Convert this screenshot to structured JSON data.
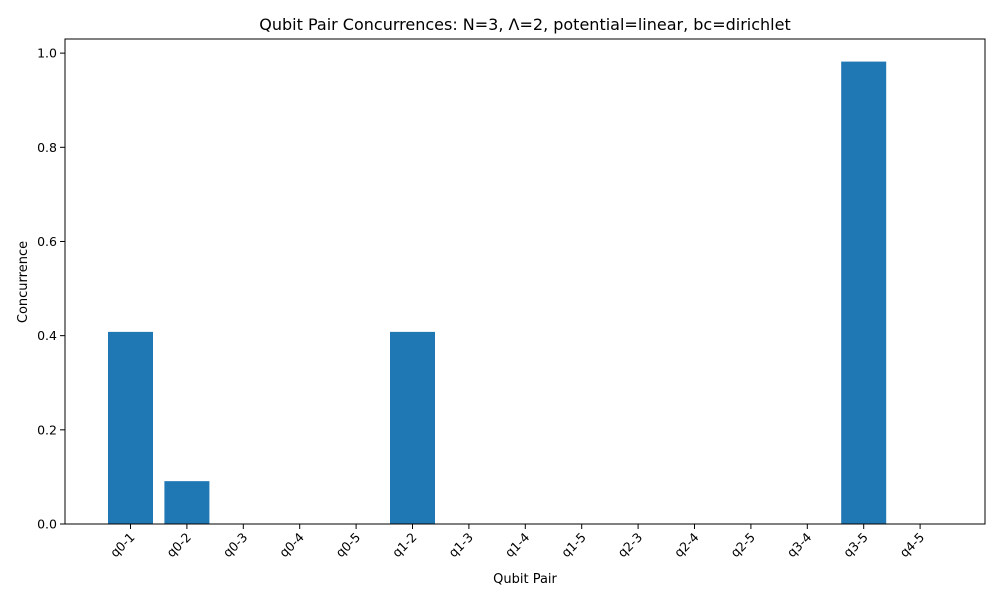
{
  "chart_data": {
    "type": "bar",
    "title": "Qubit Pair Concurrences: N=3, Λ=2, potential=linear, bc=dirichlet",
    "xlabel": "Qubit Pair",
    "ylabel": "Concurrence",
    "categories": [
      "q0-1",
      "q0-2",
      "q0-3",
      "q0-4",
      "q0-5",
      "q1-2",
      "q1-3",
      "q1-4",
      "q1-5",
      "q2-3",
      "q2-4",
      "q2-5",
      "q3-4",
      "q3-5",
      "q4-5"
    ],
    "values": [
      0.408,
      0.091,
      0.0,
      0.0,
      0.0,
      0.408,
      0.0,
      0.0,
      0.0,
      0.0,
      0.0,
      0.0,
      0.0,
      0.982,
      0.0
    ],
    "ylim": [
      0,
      1.03
    ],
    "yticks": [
      "0.0",
      "0.2",
      "0.4",
      "0.6",
      "0.8",
      "1.0"
    ],
    "bar_color": "#1f77b4",
    "grid": false,
    "legend": "none"
  }
}
